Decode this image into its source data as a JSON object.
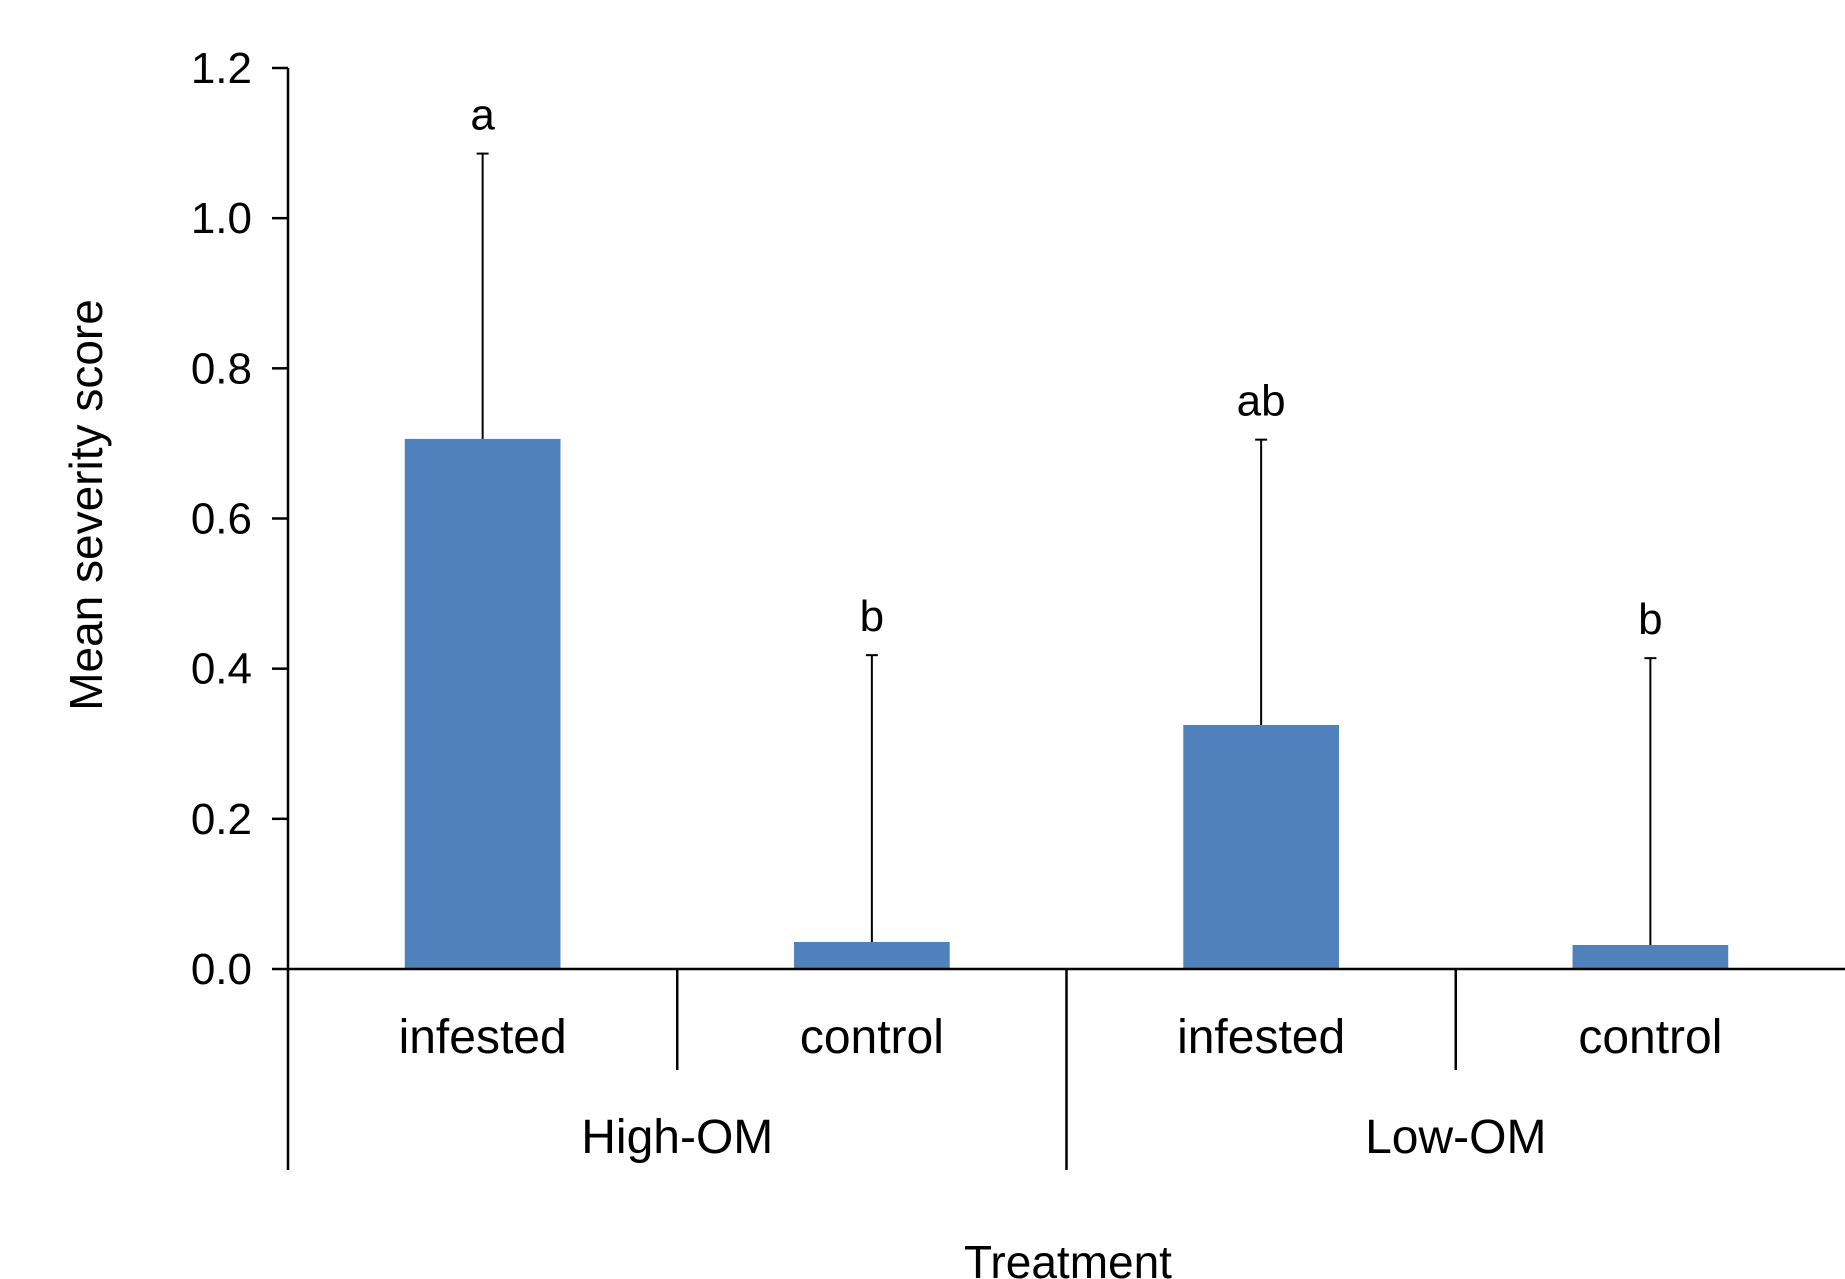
{
  "chart_data": {
    "type": "bar",
    "title": "",
    "xlabel": "Treatment",
    "ylabel": "Mean severity score",
    "ylim": [
      0,
      1.2
    ],
    "yticks": [
      "0.0",
      "0.2",
      "0.4",
      "0.6",
      "0.8",
      "1.0",
      "1.2"
    ],
    "grid": false,
    "legend": "none",
    "bar_color": "#4f81bd",
    "groups": [
      {
        "label": "High-OM",
        "categories": [
          "infested",
          "control"
        ]
      },
      {
        "label": "Low-OM",
        "categories": [
          "infested",
          "control"
        ]
      }
    ],
    "bars": [
      {
        "group": "High-OM",
        "category": "infested",
        "value": 0.706,
        "error": 0.38,
        "letter": "a"
      },
      {
        "group": "High-OM",
        "category": "control",
        "value": 0.036,
        "error": 0.382,
        "letter": "b"
      },
      {
        "group": "Low-OM",
        "category": "infested",
        "value": 0.325,
        "error": 0.38,
        "letter": "ab"
      },
      {
        "group": "Low-OM",
        "category": "control",
        "value": 0.032,
        "error": 0.382,
        "letter": "b"
      }
    ]
  }
}
